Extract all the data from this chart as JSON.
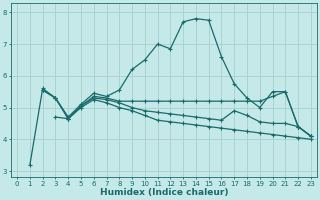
{
  "xlabel": "Humidex (Indice chaleur)",
  "background_color": "#c5e8e8",
  "grid_color": "#a8d0d0",
  "line_color": "#1a6b6b",
  "xlim": [
    -0.5,
    23.5
  ],
  "ylim": [
    2.8,
    8.3
  ],
  "yticks": [
    3,
    4,
    5,
    6,
    7,
    8
  ],
  "xticks": [
    0,
    1,
    2,
    3,
    4,
    5,
    6,
    7,
    8,
    9,
    10,
    11,
    12,
    13,
    14,
    15,
    16,
    17,
    18,
    19,
    20,
    21,
    22,
    23
  ],
  "line1_x": [
    1,
    2,
    3,
    4,
    5,
    6,
    7,
    8,
    9,
    10,
    11,
    12,
    13,
    14,
    15,
    16,
    17,
    18,
    19,
    20,
    21,
    22,
    23
  ],
  "line1_y": [
    3.2,
    5.6,
    5.3,
    4.7,
    5.1,
    5.45,
    5.35,
    5.55,
    6.2,
    6.5,
    7.0,
    6.85,
    7.7,
    7.8,
    7.75,
    6.6,
    5.75,
    5.3,
    5.0,
    5.5,
    5.5,
    4.4,
    4.1
  ],
  "line2_x": [
    2,
    3,
    4,
    5,
    6,
    7,
    8,
    9,
    10,
    11,
    12,
    13,
    14,
    15,
    16,
    17,
    18,
    19,
    20,
    21,
    22,
    23
  ],
  "line2_y": [
    5.55,
    5.3,
    4.65,
    5.05,
    5.35,
    5.3,
    5.2,
    5.2,
    5.2,
    5.2,
    5.2,
    5.2,
    5.2,
    5.2,
    5.2,
    5.2,
    5.2,
    5.2,
    5.35,
    5.5,
    4.4,
    4.1
  ],
  "line3_x": [
    2,
    3,
    4,
    5,
    6,
    7,
    8,
    9,
    10,
    11,
    12,
    13,
    14,
    15,
    16,
    17,
    18,
    19,
    20,
    21,
    22,
    23
  ],
  "line3_y": [
    5.55,
    5.3,
    4.65,
    5.05,
    5.3,
    5.25,
    5.15,
    5.0,
    4.9,
    4.85,
    4.8,
    4.75,
    4.7,
    4.65,
    4.6,
    4.9,
    4.75,
    4.55,
    4.5,
    4.5,
    4.4,
    4.1
  ],
  "line4_x": [
    3,
    4,
    5,
    6,
    7,
    8,
    9,
    10,
    11,
    12,
    13,
    14,
    15,
    16,
    17,
    18,
    19,
    20,
    21,
    22,
    23
  ],
  "line4_y": [
    4.7,
    4.65,
    5.0,
    5.25,
    5.15,
    5.0,
    4.9,
    4.75,
    4.6,
    4.55,
    4.5,
    4.45,
    4.4,
    4.35,
    4.3,
    4.25,
    4.2,
    4.15,
    4.1,
    4.05,
    4.0
  ],
  "markersize": 3,
  "linewidth": 0.9
}
